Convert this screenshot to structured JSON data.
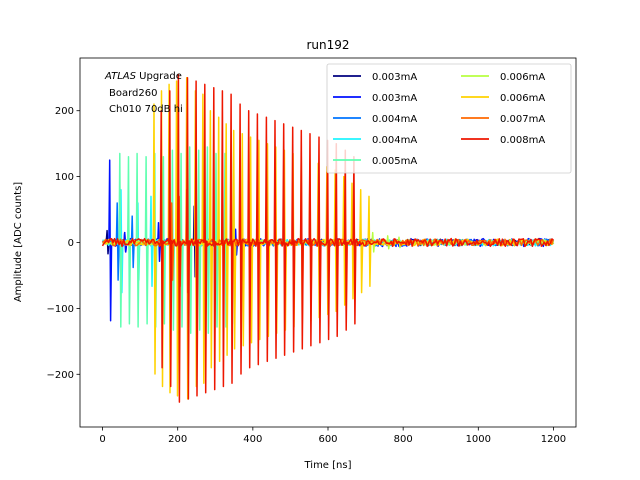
{
  "chart_data": {
    "type": "line",
    "title": "run192",
    "xlabel": "Time [ns]",
    "ylabel": "Amplitude [ADC counts]",
    "xlim": [
      -60,
      1260
    ],
    "ylim": [
      -280,
      280
    ],
    "xticks": [
      0,
      200,
      400,
      600,
      800,
      1000,
      1200
    ],
    "yticks": [
      -200,
      -100,
      0,
      100,
      200
    ],
    "legend_position": "top-right",
    "legend_columns": 2,
    "annotation": {
      "atlas": "ATLAS",
      "upgrade": " Upgrade",
      "board": "Board260",
      "channel": "Ch010 70dB hi"
    },
    "series": [
      {
        "name": "0.003mA",
        "color": "#00007f",
        "pulse_x": [
          13,
          60,
          245
        ],
        "amps": [
          18,
          15,
          55
        ],
        "noise": 5
      },
      {
        "name": "0.003mA",
        "color": "#0010ff",
        "pulse_x": [
          20,
          60,
          150,
          355
        ],
        "amps": [
          125,
          15,
          30,
          20
        ],
        "noise": 6
      },
      {
        "name": "0.004mA",
        "color": "#0074ff",
        "pulse_x": [
          40,
          80,
          160
        ],
        "amps": [
          60,
          40,
          50
        ],
        "noise": 5
      },
      {
        "name": "0.004mA",
        "color": "#1ff5ff",
        "pulse_x": [
          50,
          95,
          130
        ],
        "amps": [
          80,
          60,
          70
        ],
        "noise": 5
      },
      {
        "name": "0.005mA",
        "color": "#60ffb0",
        "pulse_x": [
          47,
          70,
          93,
          117,
          140,
          163,
          187,
          210,
          233,
          257,
          280,
          303,
          327,
          350
        ],
        "amps": [
          135,
          130,
          135,
          130,
          135,
          130,
          140,
          135,
          145,
          140,
          145,
          135,
          135,
          130
        ],
        "noise": 4
      },
      {
        "name": "0.006mA",
        "color": "#b7ff40",
        "pulse_x": [
          720,
          760,
          790
        ],
        "amps": [
          15,
          10,
          8
        ],
        "noise": 4
      },
      {
        "name": "0.006mA",
        "color": "#ffd200",
        "pulse_x": [
          138,
          158,
          178,
          198,
          225,
          248,
          268,
          288,
          310,
          330,
          350,
          373,
          395,
          417,
          440,
          462,
          485,
          508,
          530,
          553,
          575,
          598,
          620,
          643,
          665,
          688,
          710
        ],
        "amps": [
          210,
          230,
          240,
          245,
          250,
          230,
          225,
          200,
          190,
          180,
          170,
          165,
          160,
          155,
          150,
          145,
          140,
          135,
          130,
          125,
          120,
          115,
          110,
          100,
          90,
          80,
          70
        ],
        "noise": 5
      },
      {
        "name": "0.007mA",
        "color": "#ff6800",
        "pulse_x": [
          185,
          205,
          225
        ],
        "amps": [
          60,
          70,
          80
        ],
        "noise": 5
      },
      {
        "name": "0.008mA",
        "color": "#ee1600",
        "pulse_x": [
          157,
          180,
          203,
          227,
          250,
          273,
          297,
          320,
          343,
          367,
          390,
          413,
          437,
          460,
          483,
          507,
          530,
          553,
          577,
          600,
          623,
          647,
          670
        ],
        "amps": [
          200,
          230,
          255,
          250,
          245,
          240,
          235,
          230,
          225,
          210,
          200,
          195,
          190,
          185,
          180,
          175,
          170,
          165,
          160,
          155,
          150,
          140,
          130
        ],
        "noise": 6
      }
    ]
  }
}
